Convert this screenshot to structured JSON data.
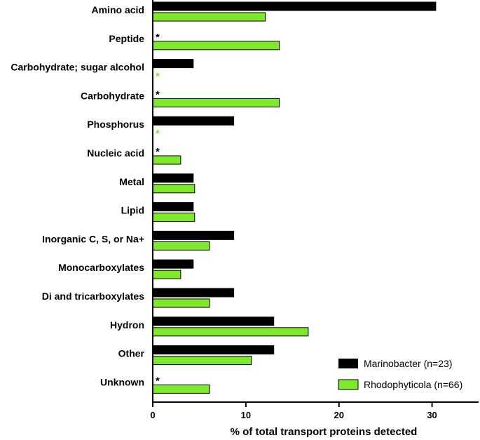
{
  "chart_data": {
    "type": "bar",
    "orientation": "horizontal",
    "categories": [
      "Amino acid",
      "Peptide",
      "Carbohydrate; sugar alcohol",
      "Carbohydrate",
      "Phosphorus",
      "Nucleic acid",
      "Metal",
      "Lipid",
      "Inorganic C, S, or Na+",
      "Monocarboxylates",
      "Di and tricarboxylates",
      "Hydron",
      "Other",
      "Unknown"
    ],
    "series": [
      {
        "name": "Marinobacter (n=23)",
        "color": "#000000",
        "values": [
          30.4,
          0,
          4.35,
          0,
          8.7,
          0,
          4.35,
          4.35,
          8.7,
          4.35,
          8.7,
          13.0,
          13.0,
          0
        ],
        "zero_marker": "*",
        "zero_marker_color": "#000000"
      },
      {
        "name": "Rhodophyticola (n=66)",
        "color": "#7ee82a",
        "values": [
          12.1,
          13.6,
          0,
          13.6,
          0,
          3.0,
          4.5,
          4.5,
          6.1,
          3.0,
          6.1,
          16.7,
          10.6,
          6.1
        ],
        "zero_marker": "*",
        "zero_marker_color": "#7ee82a"
      }
    ],
    "xlabel": "% of total transport proteins detected",
    "xlim": [
      0,
      35
    ],
    "xticks": [
      "0",
      "10",
      "20",
      "30"
    ],
    "grid": false,
    "legend_position": "bottom-right"
  }
}
